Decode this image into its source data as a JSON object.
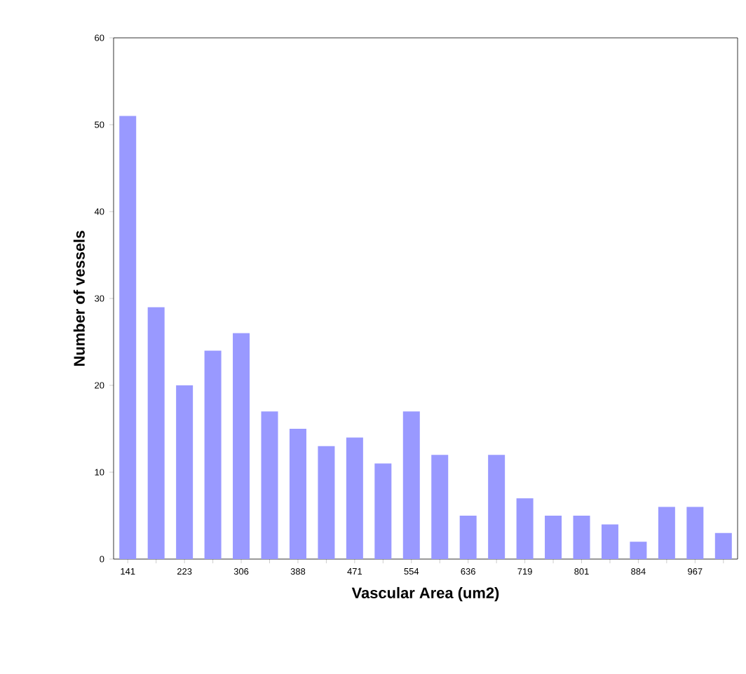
{
  "chart_data": {
    "type": "bar",
    "xlabel": "Vascular Area (um2)",
    "ylabel": "Number of vessels",
    "categories": [
      "141",
      null,
      "223",
      null,
      "306",
      null,
      "388",
      null,
      "471",
      null,
      "554",
      null,
      "636",
      null,
      "719",
      null,
      "801",
      null,
      "884",
      null,
      "967",
      null
    ],
    "values": [
      51,
      29,
      20,
      24,
      26,
      17,
      15,
      13,
      14,
      11,
      17,
      12,
      5,
      12,
      7,
      5,
      5,
      4,
      2,
      6,
      6,
      3
    ],
    "color": "#9999ff",
    "ylim": [
      0,
      60
    ],
    "yticks": [
      0,
      10,
      20,
      30,
      40,
      50,
      60
    ],
    "grid": false
  }
}
